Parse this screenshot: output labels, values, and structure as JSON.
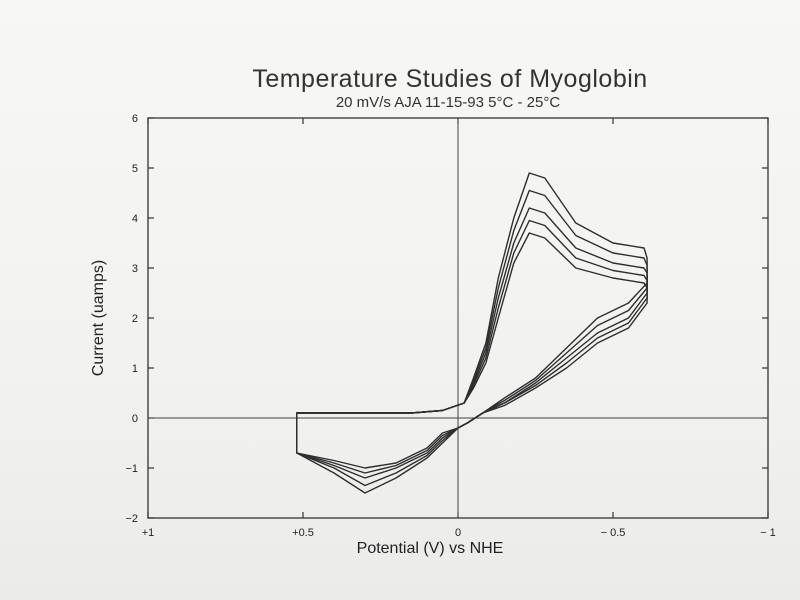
{
  "chart_data": {
    "type": "line",
    "title": "Temperature Studies of Myoglobin",
    "subtitle": "20 mV/s  AJA  11-15-93  5°C - 25°C",
    "xlabel": "Potential (V) vs NHE",
    "ylabel": "Current (uamps)",
    "xlim": [
      1,
      -1
    ],
    "ylim": [
      -2,
      6
    ],
    "x_ticks": [
      1,
      0.5,
      0,
      -0.5,
      -1
    ],
    "x_tick_labels": [
      "+1",
      "+0.5",
      "0",
      "− 0.5",
      "− 1"
    ],
    "y_ticks": [
      -2,
      -1,
      0,
      1,
      2,
      3,
      4,
      5,
      6
    ],
    "y_tick_labels": [
      "−2",
      "−1",
      "0",
      "1",
      "2",
      "3",
      "4",
      "5",
      "6"
    ],
    "series": [
      {
        "x": [
          0.52,
          0.45,
          0.35,
          0.25,
          0.15,
          0.05,
          -0.02,
          -0.05,
          -0.09,
          -0.13,
          -0.18,
          -0.23,
          -0.28,
          -0.38,
          -0.5,
          -0.6,
          -0.61,
          -0.61,
          -0.55,
          -0.45,
          -0.35,
          -0.25,
          -0.15,
          -0.08,
          -0.03,
          0.0,
          0.05,
          0.1,
          0.2,
          0.3,
          0.4,
          0.52
        ],
        "y": [
          0.1,
          0.1,
          0.1,
          0.1,
          0.1,
          0.15,
          0.3,
          0.8,
          1.5,
          2.8,
          4.0,
          4.9,
          4.8,
          3.9,
          3.5,
          3.4,
          3.2,
          2.7,
          2.3,
          2.0,
          1.4,
          0.8,
          0.4,
          0.1,
          -0.1,
          -0.2,
          -0.5,
          -0.8,
          -1.2,
          -1.5,
          -1.1,
          -0.7
        ]
      },
      {
        "x": [
          0.52,
          0.45,
          0.35,
          0.25,
          0.15,
          0.05,
          -0.02,
          -0.05,
          -0.09,
          -0.13,
          -0.18,
          -0.23,
          -0.28,
          -0.38,
          -0.5,
          -0.6,
          -0.61,
          -0.61,
          -0.55,
          -0.45,
          -0.35,
          -0.25,
          -0.15,
          -0.08,
          -0.03,
          0.0,
          0.05,
          0.1,
          0.2,
          0.3,
          0.4,
          0.52
        ],
        "y": [
          0.1,
          0.1,
          0.1,
          0.1,
          0.1,
          0.15,
          0.3,
          0.75,
          1.4,
          2.6,
          3.75,
          4.55,
          4.45,
          3.65,
          3.3,
          3.2,
          3.05,
          2.6,
          2.15,
          1.85,
          1.3,
          0.75,
          0.35,
          0.1,
          -0.1,
          -0.2,
          -0.45,
          -0.75,
          -1.1,
          -1.35,
          -1.0,
          -0.7
        ]
      },
      {
        "x": [
          0.52,
          0.45,
          0.35,
          0.25,
          0.15,
          0.05,
          -0.02,
          -0.05,
          -0.09,
          -0.13,
          -0.18,
          -0.23,
          -0.28,
          -0.38,
          -0.5,
          -0.6,
          -0.61,
          -0.61,
          -0.55,
          -0.45,
          -0.35,
          -0.25,
          -0.15,
          -0.08,
          -0.03,
          0.0,
          0.05,
          0.1,
          0.2,
          0.3,
          0.4,
          0.52
        ],
        "y": [
          0.1,
          0.1,
          0.1,
          0.1,
          0.1,
          0.15,
          0.3,
          0.7,
          1.3,
          2.4,
          3.5,
          4.2,
          4.1,
          3.4,
          3.1,
          3.0,
          2.9,
          2.5,
          2.0,
          1.7,
          1.2,
          0.7,
          0.3,
          0.1,
          -0.1,
          -0.2,
          -0.4,
          -0.7,
          -1.0,
          -1.2,
          -0.95,
          -0.7
        ]
      },
      {
        "x": [
          0.52,
          0.45,
          0.35,
          0.25,
          0.15,
          0.05,
          -0.02,
          -0.05,
          -0.09,
          -0.13,
          -0.18,
          -0.23,
          -0.28,
          -0.38,
          -0.5,
          -0.6,
          -0.61,
          -0.61,
          -0.55,
          -0.45,
          -0.35,
          -0.25,
          -0.15,
          -0.08,
          -0.03,
          0.0,
          0.05,
          0.1,
          0.2,
          0.3,
          0.4,
          0.52
        ],
        "y": [
          0.1,
          0.1,
          0.1,
          0.1,
          0.1,
          0.15,
          0.3,
          0.65,
          1.2,
          2.2,
          3.3,
          3.95,
          3.85,
          3.2,
          2.95,
          2.85,
          2.75,
          2.4,
          1.9,
          1.6,
          1.1,
          0.65,
          0.3,
          0.1,
          -0.1,
          -0.2,
          -0.35,
          -0.65,
          -0.95,
          -1.1,
          -0.9,
          -0.7
        ]
      },
      {
        "x": [
          0.52,
          0.45,
          0.35,
          0.25,
          0.15,
          0.05,
          -0.02,
          -0.05,
          -0.09,
          -0.13,
          -0.18,
          -0.23,
          -0.28,
          -0.38,
          -0.5,
          -0.6,
          -0.61,
          -0.61,
          -0.55,
          -0.45,
          -0.35,
          -0.25,
          -0.15,
          -0.08,
          -0.03,
          0.0,
          0.05,
          0.1,
          0.2,
          0.3,
          0.4,
          0.52
        ],
        "y": [
          0.1,
          0.1,
          0.1,
          0.1,
          0.1,
          0.15,
          0.3,
          0.6,
          1.1,
          2.0,
          3.1,
          3.7,
          3.6,
          3.0,
          2.8,
          2.7,
          2.6,
          2.3,
          1.8,
          1.5,
          1.0,
          0.6,
          0.25,
          0.1,
          -0.1,
          -0.2,
          -0.3,
          -0.6,
          -0.9,
          -1.0,
          -0.85,
          -0.7
        ]
      }
    ],
    "grid": false,
    "legend": "none",
    "line_color": "#2e2e2e"
  }
}
